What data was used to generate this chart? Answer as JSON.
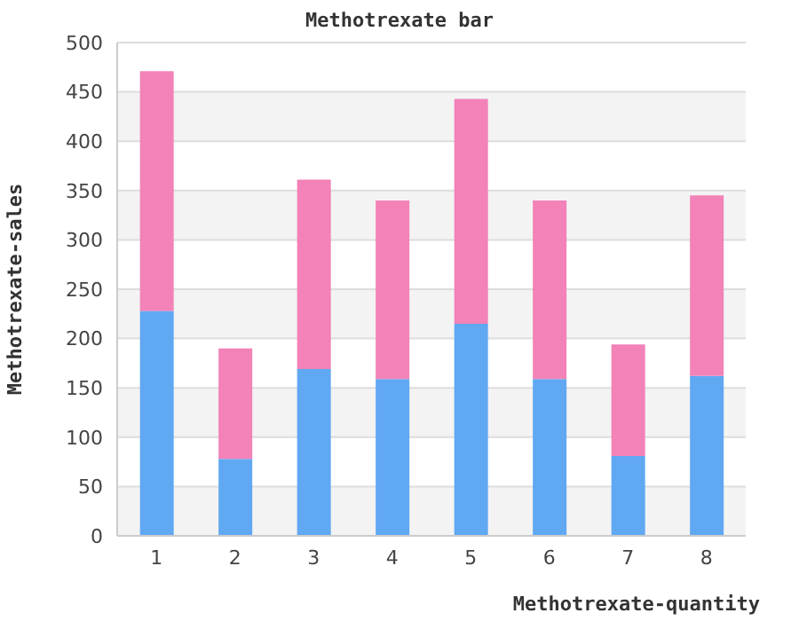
{
  "chart_data": {
    "type": "bar",
    "title": "Methotrexate bar",
    "xlabel": "Methotrexate-quantity",
    "ylabel": "Methotrexate-sales",
    "categories": [
      "1",
      "2",
      "3",
      "4",
      "5",
      "6",
      "7",
      "8"
    ],
    "stacked": true,
    "series": [
      {
        "color": "#60a8f2",
        "values": [
          228,
          78,
          169,
          159,
          215,
          159,
          81,
          162
        ]
      },
      {
        "color": "#f282b8",
        "values": [
          243,
          112,
          192,
          181,
          228,
          181,
          113,
          183
        ]
      }
    ],
    "ylim": [
      0,
      500
    ],
    "yticks": [
      0,
      50,
      100,
      150,
      200,
      250,
      300,
      350,
      400,
      450,
      500
    ],
    "grid": "y"
  }
}
